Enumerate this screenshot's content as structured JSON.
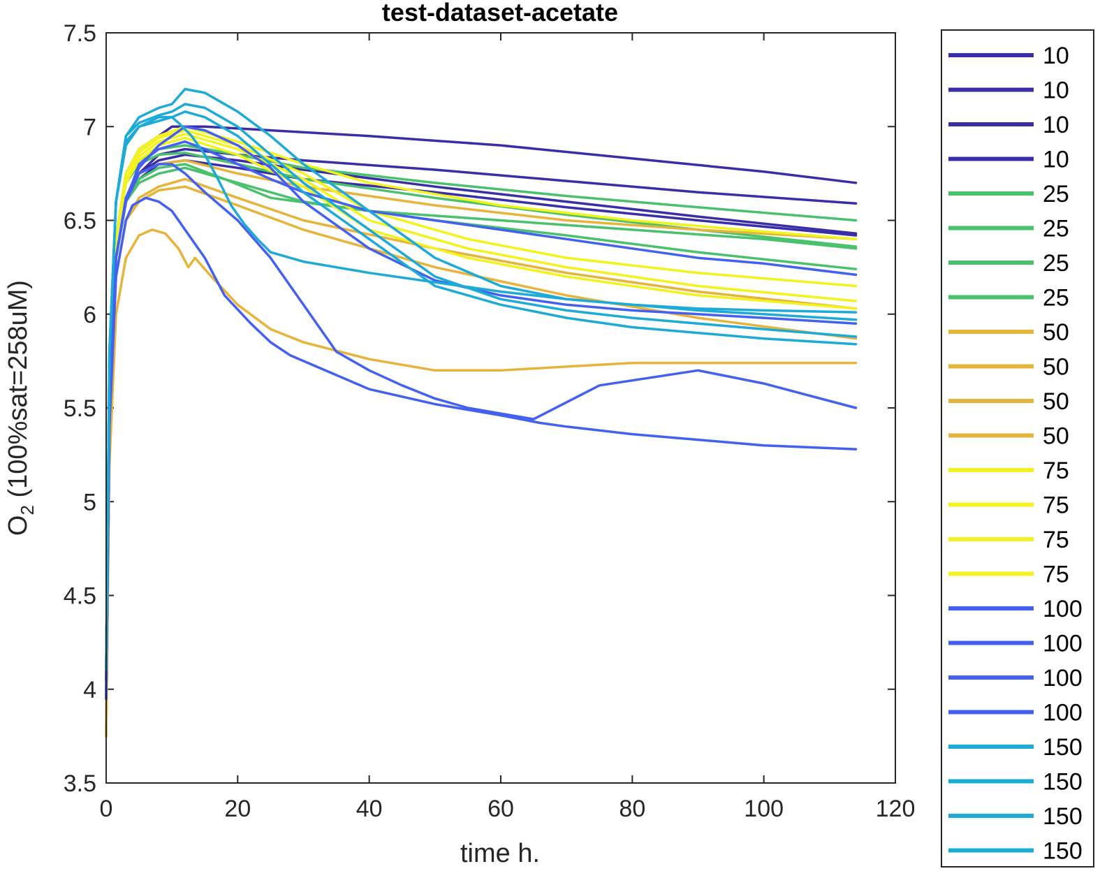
{
  "chart_data": {
    "type": "line",
    "title": "test-dataset-acetate",
    "xlabel": "time h.",
    "ylabel_main": "O",
    "ylabel_sub": "2",
    "ylabel_rest": " (100%sat=258uM)",
    "xlim": [
      0,
      120
    ],
    "ylim": [
      3.5,
      7.5
    ],
    "xticks": [
      "0",
      "20",
      "40",
      "60",
      "80",
      "100",
      "120"
    ],
    "yticks": [
      "3.5",
      "4",
      "4.5",
      "5",
      "5.5",
      "6",
      "6.5",
      "7",
      "7.5"
    ],
    "grid": false,
    "legend_position": "outside-right",
    "series": [
      {
        "name": "10",
        "color": "#3a2ea6",
        "x": [
          0,
          0.5,
          1.5,
          3,
          5,
          8,
          10,
          15,
          25,
          40,
          60,
          80,
          100,
          114
        ],
        "y": [
          4.0,
          5.6,
          6.4,
          6.75,
          6.88,
          6.95,
          7.0,
          7.0,
          6.98,
          6.95,
          6.9,
          6.83,
          6.76,
          6.7
        ]
      },
      {
        "name": "10",
        "color": "#3a2ea6",
        "x": [
          0,
          0.5,
          1.5,
          3,
          5,
          8,
          12,
          20,
          30,
          50,
          70,
          90,
          114
        ],
        "y": [
          4.05,
          5.6,
          6.3,
          6.6,
          6.75,
          6.85,
          6.88,
          6.85,
          6.82,
          6.77,
          6.71,
          6.65,
          6.59
        ]
      },
      {
        "name": "10",
        "color": "#3a2ea6",
        "x": [
          0,
          0.5,
          1.5,
          3,
          5,
          8,
          12,
          20,
          30,
          50,
          70,
          90,
          114
        ],
        "y": [
          4.05,
          5.6,
          6.3,
          6.6,
          6.75,
          6.82,
          6.85,
          6.82,
          6.77,
          6.68,
          6.6,
          6.52,
          6.43
        ]
      },
      {
        "name": "10",
        "color": "#3a2ea6",
        "x": [
          0,
          0.5,
          1.5,
          3,
          5,
          8,
          12,
          20,
          30,
          50,
          70,
          90,
          114
        ],
        "y": [
          4.05,
          5.6,
          6.3,
          6.6,
          6.72,
          6.8,
          6.82,
          6.78,
          6.72,
          6.65,
          6.57,
          6.5,
          6.42
        ]
      },
      {
        "name": "25",
        "color": "#4ac16d",
        "x": [
          0,
          0.5,
          1.5,
          3,
          5,
          8,
          12,
          20,
          30,
          50,
          70,
          90,
          114
        ],
        "y": [
          4.1,
          5.7,
          6.4,
          6.7,
          6.82,
          6.88,
          6.9,
          6.85,
          6.78,
          6.7,
          6.63,
          6.57,
          6.5
        ]
      },
      {
        "name": "25",
        "color": "#4ac16d",
        "x": [
          0,
          0.5,
          1.5,
          3,
          5,
          8,
          12,
          20,
          30,
          50,
          70,
          90,
          114
        ],
        "y": [
          4.1,
          5.7,
          6.4,
          6.7,
          6.8,
          6.85,
          6.86,
          6.8,
          6.72,
          6.62,
          6.53,
          6.45,
          6.36
        ]
      },
      {
        "name": "25",
        "color": "#4ac16d",
        "x": [
          0,
          0.5,
          1.5,
          3,
          5,
          8,
          12,
          20,
          30,
          50,
          70,
          90,
          114
        ],
        "y": [
          4.1,
          5.6,
          6.3,
          6.6,
          6.7,
          6.75,
          6.78,
          6.7,
          6.6,
          6.5,
          6.42,
          6.33,
          6.24
        ]
      },
      {
        "name": "25",
        "color": "#4ac16d",
        "x": [
          0,
          0.5,
          1.5,
          3,
          5,
          8,
          12,
          18,
          25,
          40,
          60,
          80,
          100,
          114
        ],
        "y": [
          4.1,
          5.6,
          6.3,
          6.6,
          6.72,
          6.78,
          6.8,
          6.72,
          6.62,
          6.55,
          6.5,
          6.45,
          6.4,
          6.35
        ]
      },
      {
        "name": "50",
        "color": "#e6b43a",
        "x": [
          0,
          0.5,
          1.5,
          3,
          5,
          8,
          12,
          20,
          30,
          50,
          70,
          90,
          114
        ],
        "y": [
          3.75,
          5.4,
          6.3,
          6.62,
          6.75,
          6.8,
          6.82,
          6.75,
          6.68,
          6.58,
          6.5,
          6.45,
          6.4
        ]
      },
      {
        "name": "50",
        "color": "#e6b43a",
        "x": [
          0,
          0.5,
          1.5,
          3,
          5,
          8,
          12,
          20,
          30,
          50,
          70,
          90,
          114
        ],
        "y": [
          3.75,
          5.4,
          6.2,
          6.5,
          6.62,
          6.68,
          6.72,
          6.62,
          6.5,
          6.35,
          6.22,
          6.12,
          6.03
        ]
      },
      {
        "name": "50",
        "color": "#e6b43a",
        "x": [
          0,
          0.5,
          1.5,
          3,
          5,
          8,
          12,
          20,
          30,
          50,
          70,
          90,
          114
        ],
        "y": [
          3.75,
          5.4,
          6.2,
          6.5,
          6.6,
          6.66,
          6.68,
          6.58,
          6.45,
          6.25,
          6.1,
          5.98,
          5.87
        ]
      },
      {
        "name": "50",
        "color": "#e6b43a",
        "x": [
          0,
          0.5,
          1.5,
          3,
          5,
          7,
          9,
          11,
          12.5,
          13.5,
          16,
          20,
          25,
          30,
          40,
          50,
          60,
          70,
          80,
          100,
          114
        ],
        "y": [
          3.75,
          5.2,
          6.0,
          6.3,
          6.42,
          6.45,
          6.43,
          6.35,
          6.25,
          6.3,
          6.2,
          6.05,
          5.92,
          5.85,
          5.76,
          5.7,
          5.7,
          5.72,
          5.74,
          5.74,
          5.74
        ]
      },
      {
        "name": "75",
        "color": "#f2f21e",
        "x": [
          0,
          0.5,
          1.5,
          3,
          5,
          8,
          12,
          20,
          30,
          40,
          60,
          80,
          100,
          114
        ],
        "y": [
          4.1,
          5.7,
          6.4,
          6.75,
          6.88,
          6.95,
          7.0,
          6.92,
          6.8,
          6.7,
          6.58,
          6.5,
          6.44,
          6.4
        ]
      },
      {
        "name": "75",
        "color": "#f2f21e",
        "x": [
          0,
          0.5,
          1.5,
          3,
          5,
          8,
          12,
          20,
          30,
          40,
          55,
          70,
          90,
          114
        ],
        "y": [
          4.1,
          5.7,
          6.4,
          6.75,
          6.86,
          6.94,
          6.98,
          6.9,
          6.75,
          6.55,
          6.4,
          6.3,
          6.22,
          6.15
        ]
      },
      {
        "name": "75",
        "color": "#f2f21e",
        "x": [
          0,
          0.5,
          1.5,
          3,
          5,
          8,
          12,
          20,
          30,
          40,
          55,
          70,
          90,
          114
        ],
        "y": [
          4.1,
          5.7,
          6.4,
          6.72,
          6.84,
          6.92,
          6.96,
          6.88,
          6.72,
          6.5,
          6.35,
          6.25,
          6.15,
          6.07
        ]
      },
      {
        "name": "75",
        "color": "#f2f21e",
        "x": [
          0,
          0.5,
          1.5,
          3,
          5,
          8,
          12,
          20,
          30,
          40,
          55,
          70,
          90,
          114
        ],
        "y": [
          4.1,
          5.7,
          6.4,
          6.7,
          6.82,
          6.9,
          6.94,
          6.85,
          6.68,
          6.45,
          6.3,
          6.2,
          6.1,
          6.03
        ]
      },
      {
        "name": "100",
        "color": "#4361ee",
        "x": [
          0,
          0.5,
          1.5,
          3,
          5,
          8,
          10,
          12,
          15,
          20,
          25,
          30,
          35,
          40,
          50,
          60,
          70,
          80,
          90,
          100,
          114
        ],
        "y": [
          3.95,
          5.5,
          6.3,
          6.6,
          6.8,
          6.88,
          6.9,
          6.92,
          6.88,
          6.8,
          6.72,
          6.65,
          6.6,
          6.55,
          6.5,
          6.45,
          6.4,
          6.35,
          6.3,
          6.27,
          6.21
        ]
      },
      {
        "name": "100",
        "color": "#4361ee",
        "x": [
          0,
          0.5,
          1.5,
          3,
          5,
          8,
          10,
          12,
          15,
          20,
          25,
          30,
          35,
          40,
          45,
          50,
          55,
          60,
          65,
          75,
          90,
          100,
          114
        ],
        "y": [
          3.95,
          5.5,
          6.3,
          6.6,
          6.75,
          6.8,
          6.8,
          6.75,
          6.65,
          6.5,
          6.3,
          6.05,
          5.8,
          5.7,
          5.62,
          5.55,
          5.5,
          5.47,
          5.44,
          5.62,
          5.7,
          5.63,
          5.5
        ]
      },
      {
        "name": "100",
        "color": "#4361ee",
        "x": [
          0,
          0.5,
          1.5,
          3,
          4,
          6,
          8,
          10,
          12,
          15,
          18,
          22,
          25,
          28,
          32,
          40,
          50,
          60,
          66,
          70,
          80,
          90,
          100,
          114
        ],
        "y": [
          3.95,
          5.4,
          6.2,
          6.5,
          6.58,
          6.62,
          6.6,
          6.55,
          6.45,
          6.3,
          6.1,
          5.95,
          5.85,
          5.78,
          5.72,
          5.6,
          5.52,
          5.46,
          5.42,
          5.4,
          5.36,
          5.33,
          5.3,
          5.28
        ]
      },
      {
        "name": "100",
        "color": "#4361ee",
        "x": [
          0,
          0.5,
          1.5,
          3,
          5,
          8,
          10,
          12,
          15,
          20,
          25,
          30,
          40,
          50,
          60,
          70,
          80,
          90,
          100,
          114
        ],
        "y": [
          3.95,
          5.5,
          6.3,
          6.62,
          6.78,
          6.9,
          6.95,
          7.0,
          6.98,
          6.9,
          6.78,
          6.6,
          6.35,
          6.18,
          6.1,
          6.05,
          6.02,
          6.0,
          5.98,
          5.95
        ]
      },
      {
        "name": "150",
        "color": "#1eaad6",
        "x": [
          0,
          0.5,
          1.5,
          3,
          5,
          8,
          10,
          12,
          15,
          20,
          25,
          30,
          40,
          50,
          60,
          70,
          80,
          90,
          100,
          114
        ],
        "y": [
          4.1,
          5.8,
          6.6,
          6.95,
          7.05,
          7.1,
          7.12,
          7.2,
          7.18,
          7.08,
          6.95,
          6.8,
          6.55,
          6.3,
          6.15,
          6.08,
          6.05,
          6.02,
          6.0,
          5.97
        ]
      },
      {
        "name": "150",
        "color": "#1eaad6",
        "x": [
          0,
          0.5,
          1.5,
          3,
          5,
          8,
          10,
          12,
          15,
          20,
          25,
          30,
          40,
          50,
          60,
          70,
          80,
          90,
          100,
          114
        ],
        "y": [
          4.1,
          5.8,
          6.6,
          6.95,
          7.02,
          7.06,
          7.08,
          7.12,
          7.1,
          7.0,
          6.85,
          6.7,
          6.45,
          6.2,
          6.08,
          6.02,
          5.98,
          5.95,
          5.92,
          5.88
        ]
      },
      {
        "name": "150",
        "color": "#1eaad6",
        "x": [
          0,
          0.5,
          1.5,
          3,
          5,
          8,
          10,
          12,
          15,
          20,
          25,
          30,
          40,
          50,
          60,
          70,
          80,
          90,
          100,
          114
        ],
        "y": [
          4.1,
          5.8,
          6.6,
          6.92,
          7.0,
          7.03,
          7.05,
          7.08,
          7.05,
          6.95,
          6.8,
          6.65,
          6.4,
          6.15,
          6.05,
          5.98,
          5.93,
          5.9,
          5.87,
          5.84
        ]
      },
      {
        "name": "150",
        "color": "#1eaad6",
        "x": [
          0,
          0.5,
          1.5,
          3,
          5,
          8,
          10,
          11,
          13,
          15,
          17,
          19,
          21,
          23,
          25,
          30,
          40,
          50,
          60,
          70,
          80,
          90,
          100,
          114
        ],
        "y": [
          4.1,
          5.8,
          6.6,
          6.9,
          7.0,
          7.05,
          7.05,
          7.02,
          6.95,
          6.85,
          6.72,
          6.58,
          6.48,
          6.4,
          6.33,
          6.28,
          6.22,
          6.17,
          6.12,
          6.08,
          6.05,
          6.03,
          6.02,
          6.01
        ]
      }
    ]
  }
}
